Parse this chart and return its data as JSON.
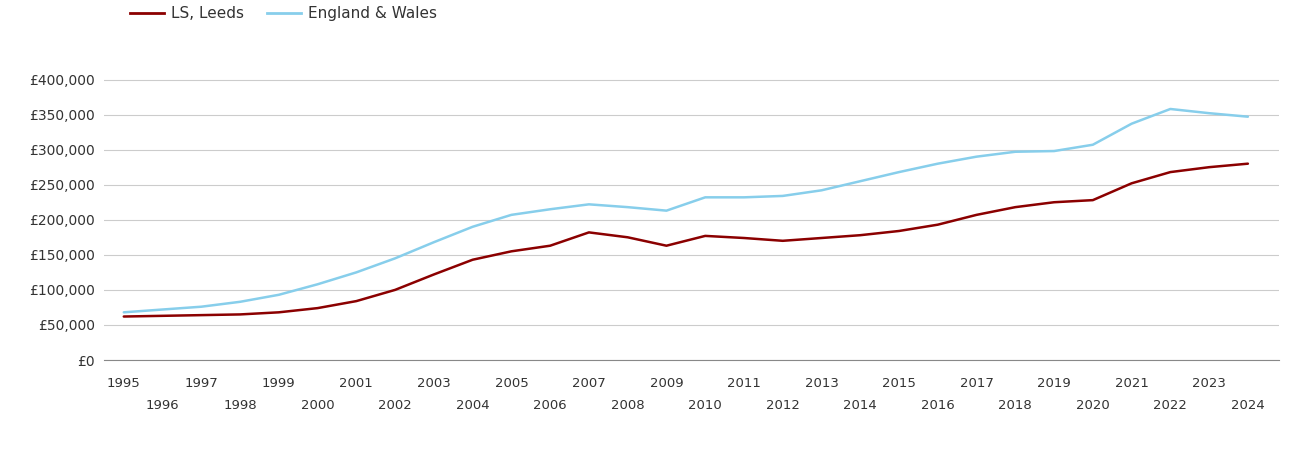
{
  "years": [
    1995,
    1996,
    1997,
    1998,
    1999,
    2000,
    2001,
    2002,
    2003,
    2004,
    2005,
    2006,
    2007,
    2008,
    2009,
    2010,
    2011,
    2012,
    2013,
    2014,
    2015,
    2016,
    2017,
    2018,
    2019,
    2020,
    2021,
    2022,
    2023,
    2024
  ],
  "leeds": [
    62000,
    63000,
    64000,
    65000,
    68000,
    74000,
    84000,
    100000,
    122000,
    143000,
    155000,
    163000,
    182000,
    175000,
    163000,
    177000,
    174000,
    170000,
    174000,
    178000,
    184000,
    193000,
    207000,
    218000,
    225000,
    228000,
    252000,
    268000,
    275000,
    280000
  ],
  "england_wales": [
    68000,
    72000,
    76000,
    83000,
    93000,
    108000,
    125000,
    145000,
    168000,
    190000,
    207000,
    215000,
    222000,
    218000,
    213000,
    232000,
    232000,
    234000,
    242000,
    255000,
    268000,
    280000,
    290000,
    297000,
    298000,
    307000,
    337000,
    358000,
    352000,
    347000
  ],
  "leeds_color": "#8B0000",
  "ew_color": "#87CEEB",
  "legend_labels": [
    "LS, Leeds",
    "England & Wales"
  ],
  "legend_colors": [
    "#8B0000",
    "#87CEEB"
  ],
  "ylim": [
    0,
    430000
  ],
  "yticks": [
    0,
    50000,
    100000,
    150000,
    200000,
    250000,
    300000,
    350000,
    400000
  ],
  "ytick_labels": [
    "£0",
    "£50,000",
    "£100,000",
    "£150,000",
    "£200,000",
    "£250,000",
    "£300,000",
    "£350,000",
    "£400,000"
  ],
  "odd_years": [
    1995,
    1997,
    1999,
    2001,
    2003,
    2005,
    2007,
    2009,
    2011,
    2013,
    2015,
    2017,
    2019,
    2021,
    2023
  ],
  "even_years": [
    1996,
    1998,
    2000,
    2002,
    2004,
    2006,
    2008,
    2010,
    2012,
    2014,
    2016,
    2018,
    2020,
    2022,
    2024
  ],
  "bg_color": "#ffffff",
  "grid_color": "#cccccc",
  "line_width": 1.8,
  "xlim_left": 1994.5,
  "xlim_right": 2024.8
}
